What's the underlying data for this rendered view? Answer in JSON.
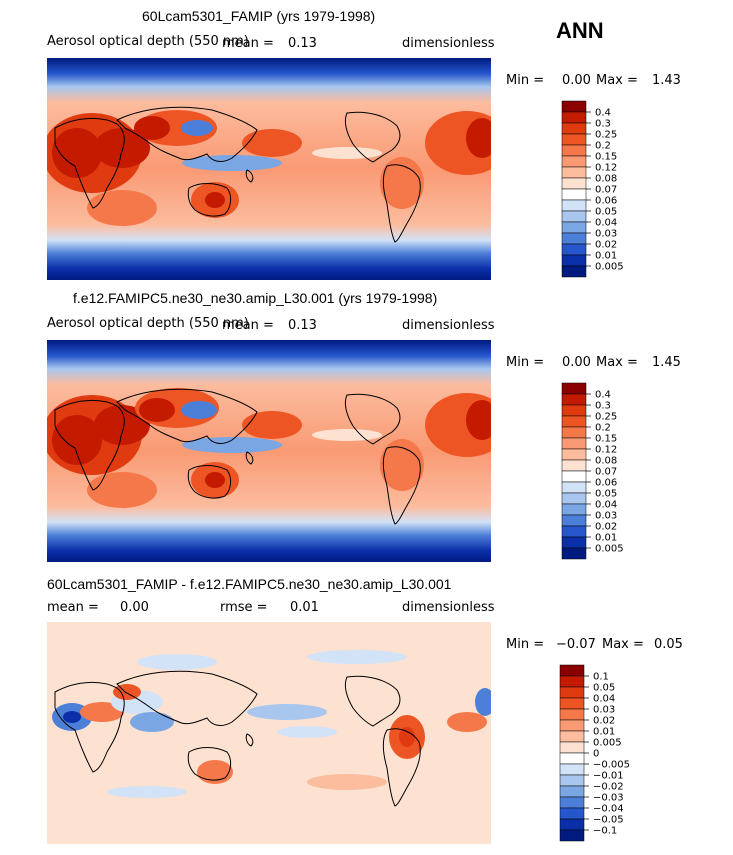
{
  "season": "ANN",
  "panels": [
    {
      "title": "60Lcam5301_FAMIP (yrs 1979-1998)",
      "variable": "Aerosol optical depth (550 nm)",
      "mean_label": "mean =",
      "mean_value": "0.13",
      "units": "dimensionless",
      "min_label": "Min =",
      "min_value": "0.00",
      "max_label": "Max =",
      "max_value": "1.43",
      "colorbar": {
        "labels": [
          "0.4",
          "0.3",
          "0.25",
          "0.2",
          "0.15",
          "0.12",
          "0.08",
          "0.07",
          "0.06",
          "0.05",
          "0.04",
          "0.03",
          "0.02",
          "0.01",
          "0.005"
        ],
        "colors": [
          "#8b0000",
          "#c41a00",
          "#df3a10",
          "#ee5524",
          "#f5784a",
          "#f99a74",
          "#fcbc9e",
          "#fde2d2",
          "#ffffff",
          "#d2e2f7",
          "#a8c6ee",
          "#7ba6e4",
          "#4c7fd8",
          "#2556cc",
          "#0a2fa9",
          "#001a80"
        ]
      }
    },
    {
      "title": "f.e12.FAMIPC5.ne30_ne30.amip_L30.001 (yrs 1979-1998)",
      "variable": "Aerosol optical depth (550 nm)",
      "mean_label": "mean =",
      "mean_value": "0.13",
      "units": "dimensionless",
      "min_label": "Min =",
      "min_value": "0.00",
      "max_label": "Max =",
      "max_value": "1.45",
      "colorbar": {
        "labels": [
          "0.4",
          "0.3",
          "0.25",
          "0.2",
          "0.15",
          "0.12",
          "0.08",
          "0.07",
          "0.06",
          "0.05",
          "0.04",
          "0.03",
          "0.02",
          "0.01",
          "0.005"
        ],
        "colors": [
          "#8b0000",
          "#c41a00",
          "#df3a10",
          "#ee5524",
          "#f5784a",
          "#f99a74",
          "#fcbc9e",
          "#fde2d2",
          "#ffffff",
          "#d2e2f7",
          "#a8c6ee",
          "#7ba6e4",
          "#4c7fd8",
          "#2556cc",
          "#0a2fa9",
          "#001a80"
        ]
      }
    },
    {
      "title": "60Lcam5301_FAMIP - f.e12.FAMIPC5.ne30_ne30.amip_L30.001",
      "mean_label": "mean =",
      "mean_value": "0.00",
      "rmse_label": "rmse =",
      "rmse_value": "0.01",
      "units": "dimensionless",
      "min_label": "Min =",
      "min_value": "−0.07",
      "max_label": "Max =",
      "max_value": "0.05",
      "colorbar": {
        "labels": [
          "0.1",
          "0.05",
          "0.04",
          "0.03",
          "0.02",
          "0.01",
          "0.005",
          "0",
          "−0.005",
          "−0.01",
          "−0.02",
          "−0.03",
          "−0.04",
          "−0.05",
          "−0.1"
        ],
        "colors": [
          "#8b0000",
          "#c41a00",
          "#df3a10",
          "#ee5524",
          "#f5784a",
          "#f99a74",
          "#fcbc9e",
          "#fde2d2",
          "#ffffff",
          "#d2e2f7",
          "#a8c6ee",
          "#7ba6e4",
          "#4c7fd8",
          "#2556cc",
          "#0a2fa9",
          "#001a80"
        ]
      }
    }
  ]
}
